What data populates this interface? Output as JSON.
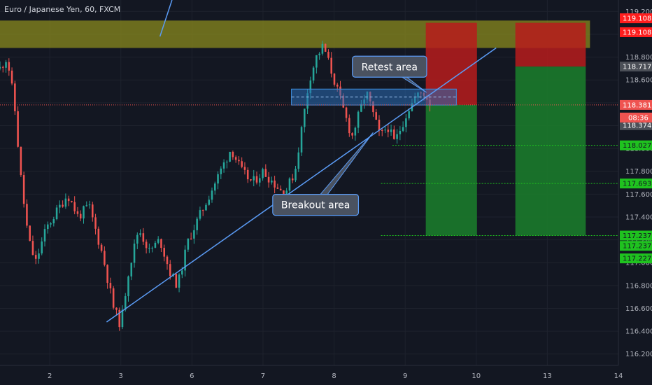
{
  "header": {
    "title": "Euro / Japanese Yen, 60, FXCM"
  },
  "colors": {
    "background": "#131722",
    "up": "#26a69a",
    "down": "#ef5350",
    "grid": "#1e222d",
    "resistance_zone": "#8a8a1e",
    "retest_zone": "#2a6bb5",
    "trendline": "#5b9cf6",
    "risk": "#b71c1c",
    "reward": "#1b7a2b",
    "current_price": "#ef5350",
    "target_badge": "#1fc21f",
    "stop_badge": "#ff1e1e"
  },
  "chart_data": {
    "type": "candlestick",
    "instrument": "Euro / Japanese Yen",
    "timeframe": "60",
    "source": "FXCM",
    "x_axis": {
      "tick_labels": [
        "2",
        "3",
        "6",
        "7",
        "8",
        "9",
        "10",
        "13",
        "14"
      ],
      "tick_positions_day_index": [
        1,
        2,
        3,
        4,
        5,
        6,
        7,
        8,
        9
      ],
      "range_day_index": [
        0.3,
        9.0
      ]
    },
    "y_axis": {
      "range": [
        116.1,
        119.3
      ],
      "tick_labels": [
        "116.200",
        "116.400",
        "116.600",
        "116.800",
        "117.000",
        "117.200",
        "117.400",
        "117.600",
        "117.800",
        "118.000",
        "118.200",
        "118.400",
        "118.600",
        "118.800",
        "119.000",
        "119.200"
      ]
    },
    "price_path": [
      [
        0.3,
        118.7
      ],
      [
        0.4,
        118.8
      ],
      [
        0.5,
        118.4
      ],
      [
        0.6,
        117.7
      ],
      [
        0.7,
        117.2
      ],
      [
        0.8,
        117.0
      ],
      [
        0.95,
        117.3
      ],
      [
        1.1,
        117.45
      ],
      [
        1.25,
        117.6
      ],
      [
        1.4,
        117.4
      ],
      [
        1.55,
        117.5
      ],
      [
        1.75,
        117.05
      ],
      [
        1.9,
        116.6
      ],
      [
        2.0,
        116.45
      ],
      [
        2.1,
        116.9
      ],
      [
        2.25,
        117.3
      ],
      [
        2.4,
        117.1
      ],
      [
        2.55,
        117.2
      ],
      [
        2.7,
        116.9
      ],
      [
        2.8,
        116.8
      ],
      [
        2.95,
        117.2
      ],
      [
        3.1,
        117.4
      ],
      [
        3.25,
        117.6
      ],
      [
        3.4,
        117.8
      ],
      [
        3.55,
        118.0
      ],
      [
        3.7,
        117.8
      ],
      [
        3.85,
        117.7
      ],
      [
        4.0,
        117.8
      ],
      [
        4.15,
        117.7
      ],
      [
        4.3,
        117.6
      ],
      [
        4.45,
        117.8
      ],
      [
        4.55,
        118.2
      ],
      [
        4.65,
        118.6
      ],
      [
        4.75,
        118.8
      ],
      [
        4.85,
        118.9
      ],
      [
        4.95,
        118.7
      ],
      [
        5.05,
        118.5
      ],
      [
        5.15,
        118.3
      ],
      [
        5.25,
        118.1
      ],
      [
        5.35,
        118.3
      ],
      [
        5.45,
        118.5
      ],
      [
        5.55,
        118.3
      ],
      [
        5.65,
        118.1
      ],
      [
        5.75,
        118.2
      ],
      [
        5.85,
        118.05
      ],
      [
        5.95,
        118.2
      ],
      [
        6.05,
        118.35
      ],
      [
        6.15,
        118.45
      ],
      [
        6.25,
        118.5
      ],
      [
        6.35,
        118.4
      ]
    ],
    "candle_interval_days": 0.042,
    "candle_noise_pct_of_range": 0.028,
    "current_price": 118.381,
    "countdown": "08:36",
    "last_price": 118.374,
    "price_labels": {
      "stop_1": "119.108",
      "stop_2": "119.108",
      "entry_2": "118.717",
      "current": "118.381",
      "last": "118.374",
      "target_1": "118.027",
      "target_2": "117.693",
      "target_3": "117.237",
      "target_4": "117.237",
      "target_5": "117.227"
    },
    "zones": {
      "resistance": {
        "y_top": 119.12,
        "y_bottom": 118.88
      },
      "retest": {
        "x_start": 4.4,
        "x_end": 6.72,
        "y_top": 118.52,
        "y_bottom": 118.38,
        "midline": 118.45
      }
    },
    "trendline": {
      "start": [
        1.8,
        116.48
      ],
      "end": [
        7.28,
        118.88
      ]
    },
    "positions": [
      {
        "x_start": 6.29,
        "x_end": 7.01,
        "stop": 119.1,
        "entry": 118.381,
        "target": 117.237
      },
      {
        "x_start": 7.55,
        "x_end": 8.54,
        "stop": 119.1,
        "entry": 118.717,
        "target": 117.237
      }
    ],
    "target_levels": [
      {
        "x_start": 5.82,
        "price": 118.027
      },
      {
        "x_start": 5.66,
        "price": 117.693
      },
      {
        "x_start": 5.66,
        "price": 117.237
      }
    ],
    "annotations": [
      {
        "text": "Retest area",
        "box_center": [
          5.78,
          118.716
        ],
        "pointer_to": [
          6.3,
          118.49
        ]
      },
      {
        "text": "Breakout area",
        "box_center": [
          4.74,
          117.506
        ],
        "pointer_to": [
          5.55,
          118.14
        ]
      }
    ],
    "grid": true,
    "legend": "none"
  }
}
